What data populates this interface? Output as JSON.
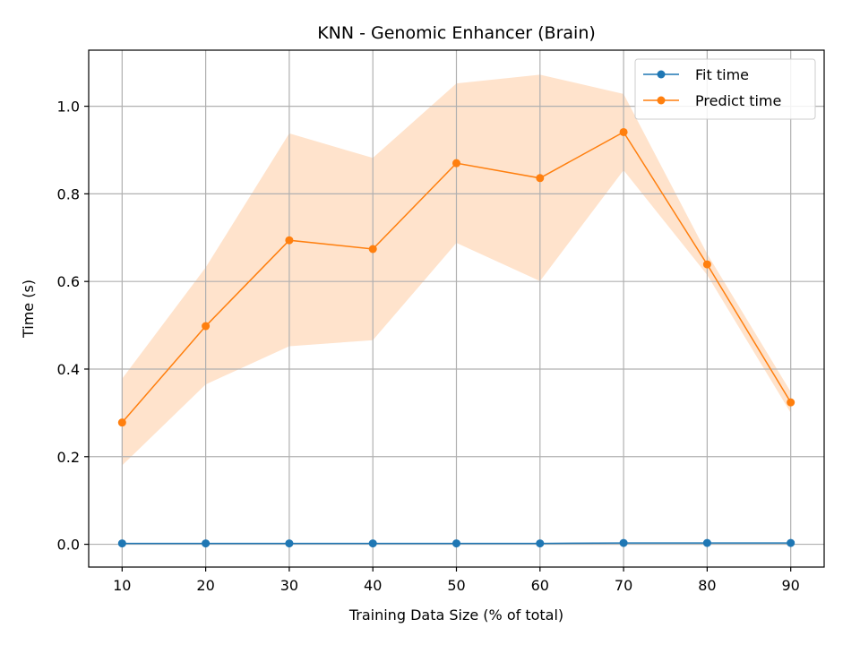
{
  "chart_data": {
    "type": "line",
    "title": "KNN - Genomic Enhancer (Brain)",
    "xlabel": "Training Data Size (% of total)",
    "ylabel": "Time (s)",
    "x": [
      10,
      20,
      30,
      40,
      50,
      60,
      70,
      80,
      90
    ],
    "xlim": [
      6,
      94
    ],
    "ylim": [
      -0.052,
      1.128
    ],
    "xticks": [
      10,
      20,
      30,
      40,
      50,
      60,
      70,
      80,
      90
    ],
    "yticks": [
      "0.0",
      "0.2",
      "0.4",
      "0.6",
      "0.8",
      "1.0"
    ],
    "grid": true,
    "legend_position": "top-right",
    "series": [
      {
        "name": "Fit time",
        "color": "#1f77b4",
        "marker": "circle",
        "values": [
          0.002,
          0.002,
          0.002,
          0.002,
          0.002,
          0.002,
          0.003,
          0.003,
          0.003
        ]
      },
      {
        "name": "Predict time",
        "color": "#ff7f0e",
        "band_color": "#ffe3cc",
        "marker": "circle",
        "values": [
          0.278,
          0.498,
          0.694,
          0.674,
          0.87,
          0.836,
          0.941,
          0.639,
          0.324
        ],
        "band_lower": [
          0.18,
          0.365,
          0.452,
          0.466,
          0.688,
          0.601,
          0.854,
          0.615,
          0.3
        ],
        "band_upper": [
          0.378,
          0.632,
          0.938,
          0.882,
          1.052,
          1.072,
          1.028,
          0.663,
          0.348
        ]
      }
    ]
  }
}
